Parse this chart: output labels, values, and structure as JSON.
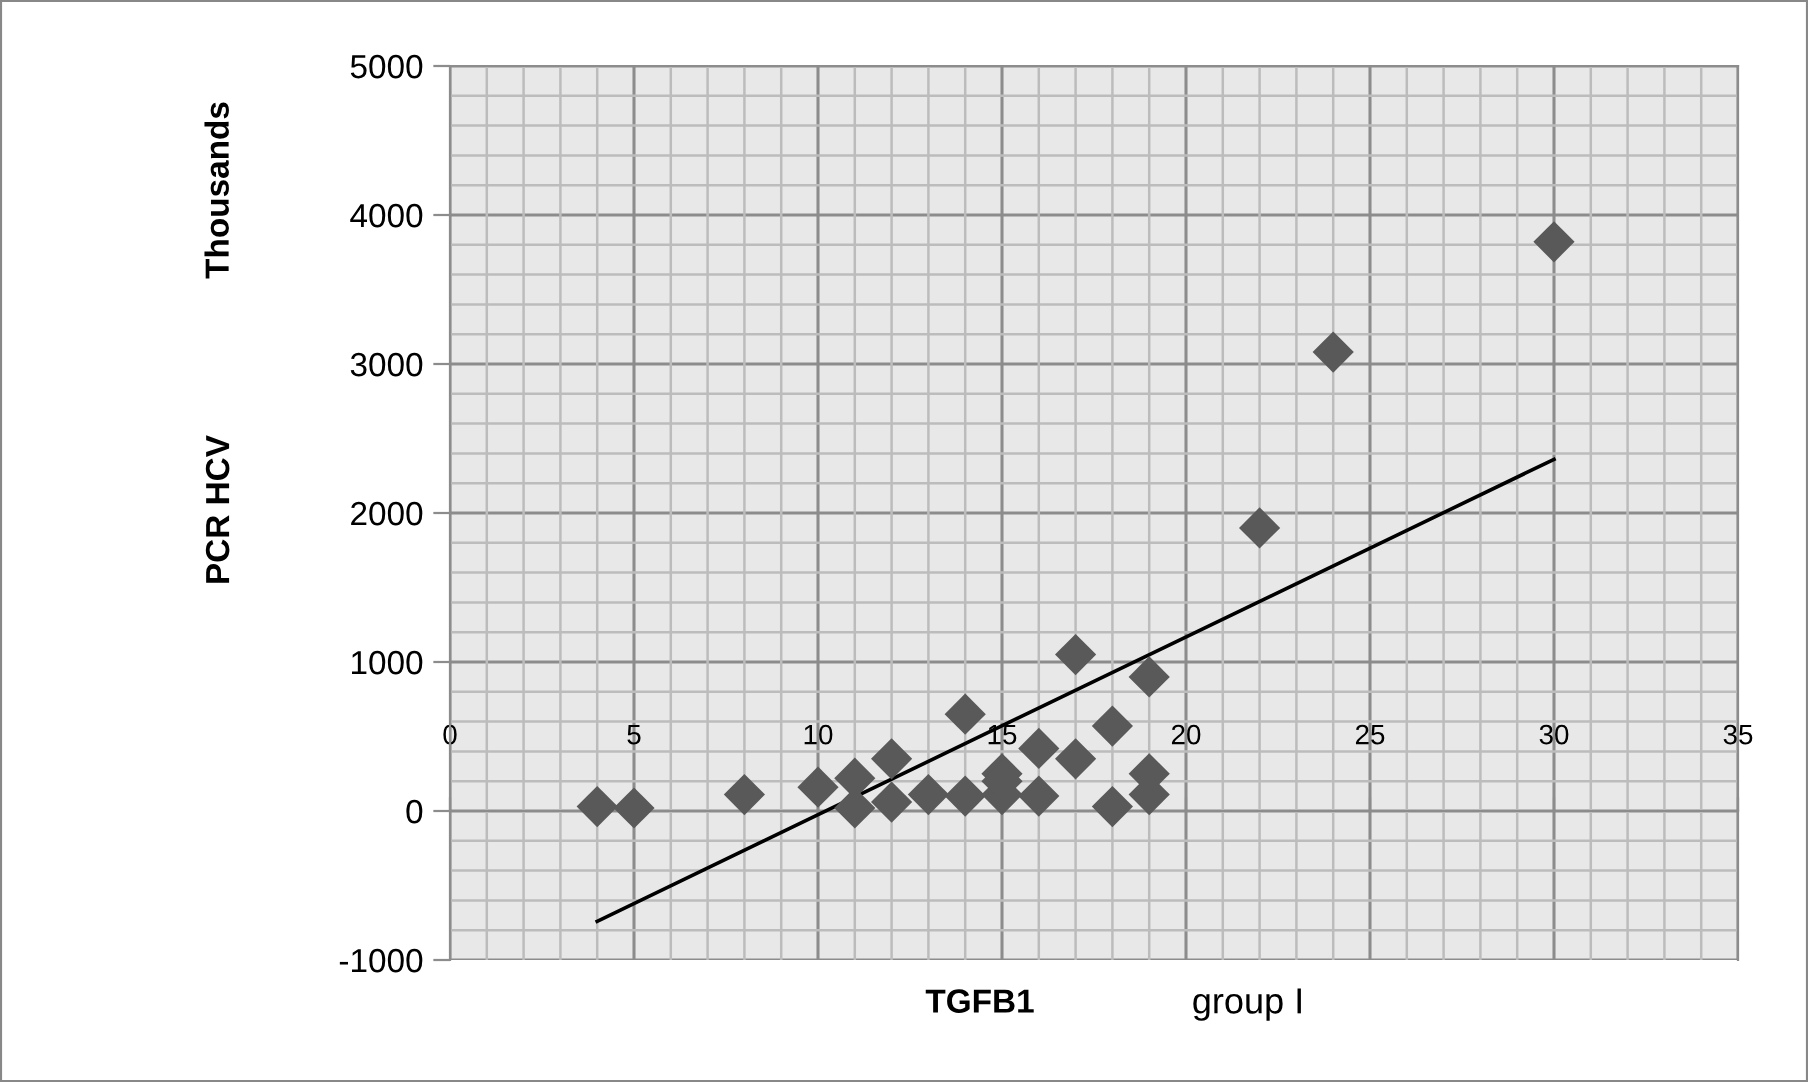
{
  "chart_data": {
    "type": "scatter",
    "xlabel": "TGFB1",
    "ylabel": "PCR HCV",
    "y2label": "Thousands",
    "annotations": [
      "group I"
    ],
    "series": [
      {
        "type": "scatter",
        "color": "#595959",
        "marker": "diamond",
        "x": [
          4,
          5,
          8,
          10,
          11,
          11,
          12,
          12,
          13,
          14,
          14,
          15,
          15,
          15,
          16,
          16,
          17,
          17,
          18,
          18,
          19,
          19,
          19,
          22,
          24,
          30
        ],
        "values": [
          30,
          20,
          110,
          160,
          220,
          20,
          350,
          60,
          110,
          650,
          100,
          250,
          110,
          200,
          420,
          100,
          1050,
          350,
          570,
          30,
          900,
          250,
          110,
          1900,
          3080,
          3820
        ]
      },
      {
        "type": "line",
        "color": "#000000",
        "marker": "none",
        "x": [
          4,
          30
        ],
        "values": [
          -740,
          2360
        ]
      }
    ],
    "xlim": [
      0,
      35
    ],
    "xticks": [
      0,
      5,
      10,
      15,
      20,
      25,
      30,
      35
    ],
    "ylim": [
      -1000,
      5000
    ],
    "yticks": [
      -1000,
      0,
      1000,
      2000,
      3000,
      4000,
      5000
    ],
    "grid": true
  }
}
